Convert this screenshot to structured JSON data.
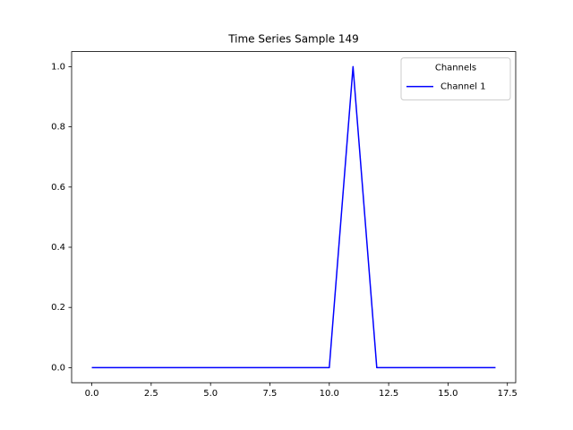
{
  "chart_data": {
    "type": "line",
    "title": "Time Series Sample 149",
    "x": [
      0,
      1,
      2,
      3,
      4,
      5,
      6,
      7,
      8,
      9,
      10,
      11,
      12,
      13,
      14,
      15,
      16,
      17
    ],
    "series": [
      {
        "name": "Channel 1",
        "color": "#0000ff",
        "values": [
          0,
          0,
          0,
          0,
          0,
          0,
          0,
          0,
          0,
          0,
          0,
          1,
          0,
          0,
          0,
          0,
          0,
          0
        ]
      }
    ],
    "legend_title": "Channels",
    "legend_position": "upper right",
    "xlim": [
      -0.85,
      17.85
    ],
    "xticks": [
      {
        "value": 0,
        "label": "0.0"
      },
      2.5,
      {
        "value": 5,
        "label": "5.0"
      },
      7.5,
      {
        "value": 10,
        "label": "10.0"
      },
      12.5,
      {
        "value": 15,
        "label": "15.0"
      },
      17.5
    ],
    "ylim": [
      -0.05,
      1.05
    ],
    "yticks": [
      {
        "value": 0,
        "label": "0.0"
      },
      0.2,
      0.4,
      0.6,
      0.8,
      {
        "value": 1,
        "label": "1.0"
      }
    ],
    "grid": false
  }
}
